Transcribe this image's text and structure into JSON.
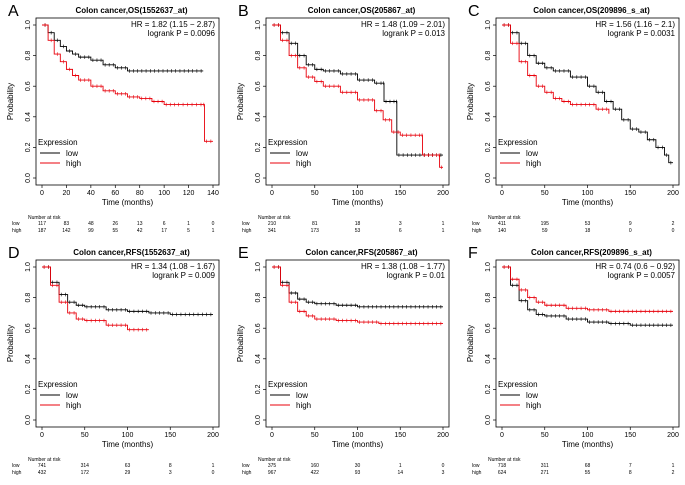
{
  "colors": {
    "low": "#000000",
    "high": "#e8000b"
  },
  "chart_data": [
    {
      "type": "line",
      "panel": "A",
      "title": "Colon cancer,OS(1552637_at)",
      "xlabel": "Time (months)",
      "ylabel": "Probability",
      "xlim": [
        0,
        140
      ],
      "xticks": [
        0,
        20,
        40,
        60,
        80,
        100,
        120,
        140
      ],
      "ylim": [
        0,
        1
      ],
      "yticks": [
        "0.0",
        "0.2",
        "0.4",
        "0.6",
        "0.8",
        "1.0"
      ],
      "hr": "HR = 1.82 (1.15 − 2.87)",
      "logrank": "logrank P = 0.0096",
      "legend": {
        "title": "Expression",
        "entries": [
          "low",
          "high"
        ]
      },
      "risk_header": "Number at risk",
      "risk_times": [
        0,
        20,
        40,
        60,
        80,
        100,
        120,
        140
      ],
      "risk": {
        "low": [
          "117",
          "83",
          "48",
          "26",
          "13",
          "6",
          "1",
          "0"
        ],
        "high": [
          "187",
          "142",
          "99",
          "55",
          "42",
          "17",
          "5",
          "1"
        ]
      },
      "series": [
        {
          "name": "low",
          "points": [
            [
              0,
              1
            ],
            [
              5,
              0.95
            ],
            [
              10,
              0.9
            ],
            [
              15,
              0.86
            ],
            [
              20,
              0.83
            ],
            [
              25,
              0.81
            ],
            [
              30,
              0.79
            ],
            [
              40,
              0.77
            ],
            [
              50,
              0.74
            ],
            [
              60,
              0.72
            ],
            [
              70,
              0.7
            ],
            [
              80,
              0.7
            ],
            [
              132,
              0.7
            ]
          ]
        },
        {
          "name": "high",
          "points": [
            [
              0,
              1
            ],
            [
              5,
              0.9
            ],
            [
              10,
              0.81
            ],
            [
              15,
              0.76
            ],
            [
              20,
              0.71
            ],
            [
              25,
              0.67
            ],
            [
              30,
              0.64
            ],
            [
              40,
              0.6
            ],
            [
              50,
              0.57
            ],
            [
              60,
              0.55
            ],
            [
              70,
              0.53
            ],
            [
              80,
              0.52
            ],
            [
              90,
              0.5
            ],
            [
              100,
              0.48
            ],
            [
              110,
              0.48
            ],
            [
              132,
              0.48
            ],
            [
              133,
              0.24
            ],
            [
              140,
              0.24
            ]
          ]
        }
      ]
    },
    {
      "type": "line",
      "panel": "B",
      "title": "Colon cancer,OS(205867_at)",
      "xlabel": "Time (months)",
      "ylabel": "Probability",
      "xlim": [
        0,
        200
      ],
      "xticks": [
        0,
        50,
        100,
        150,
        200
      ],
      "ylim": [
        0,
        1
      ],
      "yticks": [
        "0.0",
        "0.2",
        "0.4",
        "0.6",
        "0.8",
        "1.0"
      ],
      "hr": "HR = 1.48 (1.09 − 2.01)",
      "logrank": "logrank P = 0.013",
      "legend": {
        "title": "Expression",
        "entries": [
          "low",
          "high"
        ]
      },
      "risk_header": "Number at risk",
      "risk_times": [
        0,
        50,
        100,
        150,
        200
      ],
      "risk": {
        "low": [
          "210",
          "81",
          "18",
          "3",
          "1"
        ],
        "high": [
          "341",
          "173",
          "53",
          "6",
          "1"
        ]
      },
      "series": [
        {
          "name": "low",
          "points": [
            [
              0,
              1
            ],
            [
              10,
              0.95
            ],
            [
              20,
              0.88
            ],
            [
              30,
              0.8
            ],
            [
              40,
              0.74
            ],
            [
              50,
              0.71
            ],
            [
              60,
              0.7
            ],
            [
              80,
              0.68
            ],
            [
              100,
              0.64
            ],
            [
              120,
              0.62
            ],
            [
              130,
              0.62
            ],
            [
              131,
              0.5
            ],
            [
              145,
              0.5
            ],
            [
              146,
              0.15
            ],
            [
              200,
              0.15
            ]
          ]
        },
        {
          "name": "high",
          "points": [
            [
              0,
              1
            ],
            [
              10,
              0.9
            ],
            [
              20,
              0.8
            ],
            [
              30,
              0.72
            ],
            [
              40,
              0.66
            ],
            [
              50,
              0.63
            ],
            [
              60,
              0.6
            ],
            [
              80,
              0.56
            ],
            [
              100,
              0.51
            ],
            [
              120,
              0.44
            ],
            [
              130,
              0.38
            ],
            [
              140,
              0.3
            ],
            [
              150,
              0.28
            ],
            [
              175,
              0.28
            ],
            [
              176,
              0.15
            ],
            [
              195,
              0.15
            ],
            [
              196,
              0.07
            ],
            [
              200,
              0.07
            ]
          ]
        }
      ]
    },
    {
      "type": "line",
      "panel": "C",
      "title": "Colon cancer,OS(209896_s_at)",
      "xlabel": "Time (months)",
      "ylabel": "Probability",
      "xlim": [
        0,
        200
      ],
      "xticks": [
        0,
        50,
        100,
        150,
        200
      ],
      "ylim": [
        0,
        1
      ],
      "yticks": [
        "0.0",
        "0.2",
        "0.4",
        "0.6",
        "0.8",
        "1.0"
      ],
      "hr": "HR = 1.56 (1.16 − 2.1)",
      "logrank": "logrank P = 0.0031",
      "legend": {
        "title": "Expression",
        "entries": [
          "low",
          "high"
        ]
      },
      "risk_header": "Number at risk",
      "risk_times": [
        0,
        50,
        100,
        150,
        200
      ],
      "risk": {
        "low": [
          "411",
          "195",
          "53",
          "9",
          "2"
        ],
        "high": [
          "140",
          "59",
          "18",
          "0",
          "0"
        ]
      },
      "series": [
        {
          "name": "low",
          "points": [
            [
              0,
              1
            ],
            [
              10,
              0.95
            ],
            [
              20,
              0.88
            ],
            [
              30,
              0.8
            ],
            [
              40,
              0.75
            ],
            [
              50,
              0.72
            ],
            [
              60,
              0.7
            ],
            [
              80,
              0.66
            ],
            [
              100,
              0.6
            ],
            [
              110,
              0.56
            ],
            [
              120,
              0.5
            ],
            [
              130,
              0.45
            ],
            [
              140,
              0.38
            ],
            [
              150,
              0.32
            ],
            [
              160,
              0.3
            ],
            [
              170,
              0.25
            ],
            [
              180,
              0.2
            ],
            [
              190,
              0.15
            ],
            [
              195,
              0.1
            ],
            [
              200,
              0.1
            ]
          ]
        },
        {
          "name": "high",
          "points": [
            [
              0,
              1
            ],
            [
              10,
              0.88
            ],
            [
              20,
              0.76
            ],
            [
              30,
              0.67
            ],
            [
              40,
              0.6
            ],
            [
              50,
              0.56
            ],
            [
              60,
              0.52
            ],
            [
              70,
              0.5
            ],
            [
              80,
              0.48
            ],
            [
              100,
              0.48
            ],
            [
              110,
              0.45
            ],
            [
              125,
              0.42
            ]
          ]
        }
      ]
    },
    {
      "type": "line",
      "panel": "D",
      "title": "Colon cancer,RFS(1552637_at)",
      "xlabel": "Time (months)",
      "ylabel": "Probability",
      "xlim": [
        0,
        200
      ],
      "xticks": [
        0,
        50,
        100,
        150,
        200
      ],
      "ylim": [
        0,
        1
      ],
      "yticks": [
        "0.0",
        "0.2",
        "0.4",
        "0.6",
        "0.8",
        "1.0"
      ],
      "hr": "HR = 1.34 (1.08 − 1.67)",
      "logrank": "logrank P = 0.009",
      "legend": {
        "title": "Expression",
        "entries": [
          "low",
          "high"
        ]
      },
      "risk_header": "Number at risk",
      "risk_times": [
        0,
        50,
        100,
        150,
        200
      ],
      "risk": {
        "low": [
          "741",
          "314",
          "63",
          "8",
          "1"
        ],
        "high": [
          "432",
          "172",
          "29",
          "3",
          "0"
        ]
      },
      "series": [
        {
          "name": "low",
          "points": [
            [
              0,
              1
            ],
            [
              10,
              0.9
            ],
            [
              20,
              0.82
            ],
            [
              30,
              0.77
            ],
            [
              40,
              0.75
            ],
            [
              50,
              0.74
            ],
            [
              75,
              0.72
            ],
            [
              100,
              0.71
            ],
            [
              125,
              0.7
            ],
            [
              150,
              0.69
            ],
            [
              200,
              0.69
            ]
          ]
        },
        {
          "name": "high",
          "points": [
            [
              0,
              1
            ],
            [
              10,
              0.88
            ],
            [
              20,
              0.77
            ],
            [
              30,
              0.7
            ],
            [
              40,
              0.66
            ],
            [
              50,
              0.65
            ],
            [
              75,
              0.62
            ],
            [
              100,
              0.59
            ],
            [
              125,
              0.59
            ]
          ]
        }
      ]
    },
    {
      "type": "line",
      "panel": "E",
      "title": "Colon cancer,RFS(205867_at)",
      "xlabel": "Time (months)",
      "ylabel": "Probability",
      "xlim": [
        0,
        200
      ],
      "xticks": [
        0,
        50,
        100,
        150,
        200
      ],
      "ylim": [
        0,
        1
      ],
      "yticks": [
        "0.0",
        "0.2",
        "0.4",
        "0.6",
        "0.8",
        "1.0"
      ],
      "hr": "HR = 1.38 (1.08 − 1.77)",
      "logrank": "logrank P = 0.01",
      "legend": {
        "title": "Expression",
        "entries": [
          "low",
          "high"
        ]
      },
      "risk_header": "Number at risk",
      "risk_times": [
        0,
        50,
        100,
        150,
        200
      ],
      "risk": {
        "low": [
          "375",
          "160",
          "30",
          "1",
          "0"
        ],
        "high": [
          "967",
          "422",
          "93",
          "14",
          "3"
        ]
      },
      "series": [
        {
          "name": "low",
          "points": [
            [
              0,
              1
            ],
            [
              10,
              0.9
            ],
            [
              20,
              0.83
            ],
            [
              30,
              0.79
            ],
            [
              40,
              0.77
            ],
            [
              50,
              0.76
            ],
            [
              75,
              0.75
            ],
            [
              100,
              0.74
            ],
            [
              200,
              0.74
            ]
          ]
        },
        {
          "name": "high",
          "points": [
            [
              0,
              1
            ],
            [
              10,
              0.88
            ],
            [
              20,
              0.77
            ],
            [
              30,
              0.71
            ],
            [
              40,
              0.68
            ],
            [
              50,
              0.66
            ],
            [
              75,
              0.65
            ],
            [
              100,
              0.64
            ],
            [
              125,
              0.63
            ],
            [
              150,
              0.63
            ],
            [
              200,
              0.63
            ]
          ]
        }
      ]
    },
    {
      "type": "line",
      "panel": "F",
      "title": "Colon cancer,RFS(209896_s_at)",
      "xlabel": "Time (months)",
      "ylabel": "Probability",
      "xlim": [
        0,
        200
      ],
      "xticks": [
        0,
        50,
        100,
        150,
        200
      ],
      "ylim": [
        0,
        1
      ],
      "yticks": [
        "0.0",
        "0.2",
        "0.4",
        "0.6",
        "0.8",
        "1.0"
      ],
      "hr": "HR = 0.74 (0.6 − 0.92)",
      "logrank": "logrank P = 0.0057",
      "legend": {
        "title": "Expression",
        "entries": [
          "low",
          "high"
        ]
      },
      "risk_header": "Number at risk",
      "risk_times": [
        0,
        50,
        100,
        150,
        200
      ],
      "risk": {
        "low": [
          "718",
          "311",
          "68",
          "7",
          "1"
        ],
        "high": [
          "624",
          "271",
          "55",
          "8",
          "2"
        ]
      },
      "series": [
        {
          "name": "low",
          "points": [
            [
              0,
              1
            ],
            [
              10,
              0.88
            ],
            [
              20,
              0.78
            ],
            [
              30,
              0.72
            ],
            [
              40,
              0.69
            ],
            [
              50,
              0.68
            ],
            [
              75,
              0.66
            ],
            [
              100,
              0.64
            ],
            [
              125,
              0.63
            ],
            [
              150,
              0.62
            ],
            [
              200,
              0.62
            ]
          ]
        },
        {
          "name": "high",
          "points": [
            [
              0,
              1
            ],
            [
              10,
              0.92
            ],
            [
              20,
              0.85
            ],
            [
              30,
              0.8
            ],
            [
              40,
              0.77
            ],
            [
              50,
              0.75
            ],
            [
              75,
              0.73
            ],
            [
              100,
              0.72
            ],
            [
              125,
              0.71
            ],
            [
              150,
              0.71
            ],
            [
              200,
              0.71
            ]
          ]
        }
      ]
    }
  ]
}
